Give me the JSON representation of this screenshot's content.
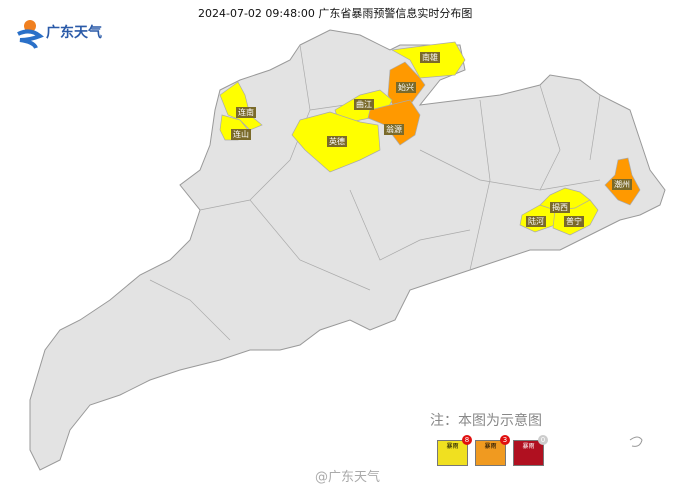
{
  "header": {
    "title": "2024-07-02 09:48:00 广东省暴雨预警信息实时分布图",
    "logo_text": "广东天气"
  },
  "colors": {
    "yellow": "#ffff00",
    "orange": "#ff9900",
    "red": "#c00000",
    "land": "#e3e3e3",
    "border": "#999999"
  },
  "regions": [
    {
      "name": "南雄",
      "level": "yellow"
    },
    {
      "name": "始兴",
      "level": "orange"
    },
    {
      "name": "曲江",
      "level": "yellow"
    },
    {
      "name": "翁源",
      "level": "orange"
    },
    {
      "name": "连南",
      "level": "yellow"
    },
    {
      "name": "连山",
      "level": "yellow"
    },
    {
      "name": "英德",
      "level": "yellow"
    },
    {
      "name": "潮州",
      "level": "orange"
    },
    {
      "name": "揭西",
      "level": "yellow"
    },
    {
      "name": "陆河",
      "level": "yellow"
    },
    {
      "name": "普宁",
      "level": "yellow"
    }
  ],
  "note": "注：本图为示意图",
  "legend": [
    {
      "label": "暴雨",
      "level": "yellow",
      "count": "8"
    },
    {
      "label": "暴雨",
      "level": "orange",
      "count": "3"
    },
    {
      "label": "暴雨",
      "level": "red",
      "count": "0"
    }
  ],
  "watermark": "@广东天气"
}
